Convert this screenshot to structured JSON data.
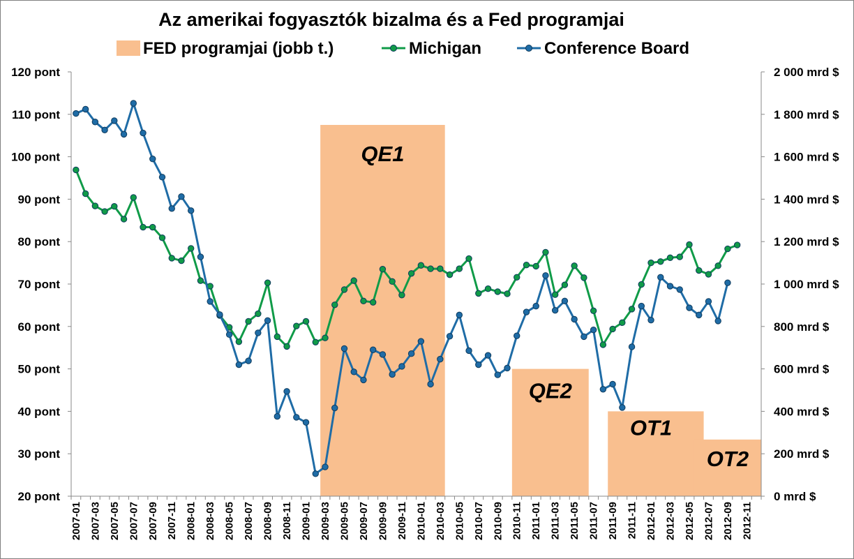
{
  "chart_data": {
    "type": "line",
    "title": "Az amerikai fogyasztók bizalma és a Fed programjai",
    "legend": {
      "placement": "top",
      "entries": [
        "FED programjai (jobb t.)",
        "Michigan",
        "Conference Board"
      ]
    },
    "colors": {
      "fed": "#f9bf8f",
      "michigan": "#109b48",
      "conference_board": "#1f6ca6",
      "marker_border": "#0e3a5c"
    },
    "x_start": "2007-01",
    "x_tick_labels": [
      "2007-01",
      "2007-03",
      "2007-05",
      "2007-07",
      "2007-09",
      "2007-11",
      "2008-01",
      "2008-03",
      "2008-05",
      "2008-07",
      "2008-09",
      "2008-11",
      "2009-01",
      "2009-03",
      "2009-05",
      "2009-07",
      "2009-09",
      "2009-11",
      "2010-01",
      "2010-03",
      "2010-05",
      "2010-07",
      "2010-09",
      "2010-11",
      "2011-01",
      "2011-03",
      "2011-05",
      "2011-07",
      "2011-09",
      "2011-11",
      "2012-01",
      "2012-03",
      "2012-05",
      "2012-07",
      "2012-09",
      "2012-11"
    ],
    "y_left": {
      "range": [
        20,
        120
      ],
      "ticks": [
        20,
        30,
        40,
        50,
        60,
        70,
        80,
        90,
        100,
        110,
        120
      ],
      "tick_labels": [
        "20 pont",
        "30 pont",
        "40 pont",
        "50 pont",
        "60 pont",
        "70 pont",
        "80 pont",
        "90 pont",
        "100 pont",
        "110 pont",
        "120 pont"
      ]
    },
    "y_right": {
      "range": [
        0,
        2000
      ],
      "ticks": [
        0,
        200,
        400,
        600,
        800,
        1000,
        1200,
        1400,
        1600,
        1800,
        2000
      ],
      "tick_labels": [
        "0 mrd $",
        "200 mrd $",
        "400 mrd $",
        "600 mrd $",
        "800 mrd $",
        "1 000 mrd $",
        "1 200 mrd $",
        "1 400 mrd $",
        "1 600 mrd $",
        "1 800 mrd $",
        "2 000 mrd $"
      ]
    },
    "programs": [
      {
        "label": "QE1",
        "start": "2009-03",
        "end": "2010-03",
        "value": 1750
      },
      {
        "label": "QE2",
        "start": "2010-11",
        "end": "2011-06",
        "value": 600
      },
      {
        "label": "OT1",
        "start": "2011-09",
        "end": "2012-06",
        "value": 400
      },
      {
        "label": "OT2",
        "start": "2012-06",
        "end": "2012-12",
        "value": 267
      }
    ],
    "series": [
      {
        "name": "Michigan",
        "axis": "left",
        "values": [
          96.9,
          91.3,
          88.4,
          87.1,
          88.3,
          85.3,
          90.4,
          83.4,
          83.4,
          80.9,
          76.1,
          75.5,
          78.4,
          70.8,
          69.5,
          62.6,
          59.8,
          56.4,
          61.2,
          63.0,
          70.3,
          57.6,
          55.3,
          60.1,
          61.2,
          56.3,
          57.3,
          65.1,
          68.7,
          70.8,
          66.0,
          65.7,
          73.5,
          70.6,
          67.4,
          72.5,
          74.4,
          73.6,
          73.6,
          72.2,
          73.6,
          76.0,
          67.8,
          68.9,
          68.2,
          67.7,
          71.6,
          74.5,
          74.2,
          77.5,
          67.5,
          69.8,
          74.3,
          71.5,
          63.7,
          55.7,
          59.4,
          60.9,
          64.1,
          69.9,
          75.0,
          75.3,
          76.2,
          76.4,
          79.3,
          73.2,
          72.3,
          74.3,
          78.3,
          79.2
        ]
      },
      {
        "name": "Conference Board",
        "axis": "left",
        "values": [
          110.2,
          111.2,
          108.2,
          106.3,
          108.5,
          105.3,
          112.6,
          105.6,
          99.5,
          95.2,
          87.8,
          90.6,
          87.3,
          76.4,
          65.9,
          62.8,
          58.1,
          51.0,
          51.9,
          58.5,
          61.4,
          38.8,
          44.7,
          38.6,
          37.4,
          25.3,
          26.9,
          40.8,
          54.8,
          49.3,
          47.4,
          54.5,
          53.4,
          48.7,
          50.6,
          53.6,
          56.5,
          46.4,
          52.3,
          57.7,
          62.7,
          54.3,
          51.0,
          53.2,
          48.6,
          50.2,
          57.8,
          63.4,
          64.8,
          72.0,
          63.8,
          66.0,
          61.7,
          57.6,
          59.2,
          45.2,
          46.4,
          40.9,
          55.2,
          64.8,
          61.5,
          71.6,
          69.5,
          68.7,
          64.4,
          62.7,
          65.9,
          61.3,
          70.3
        ]
      }
    ],
    "program_labels": [
      "QE1",
      "QE2",
      "OT1",
      "OT2"
    ]
  }
}
